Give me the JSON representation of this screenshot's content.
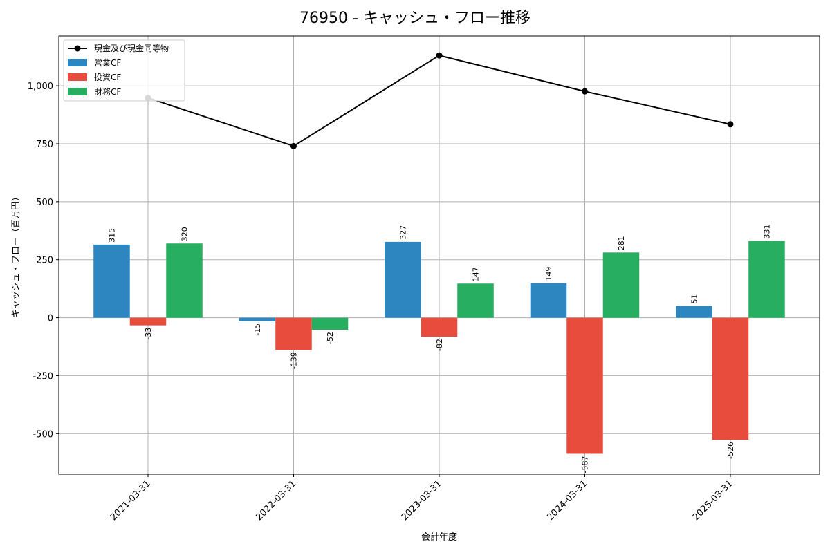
{
  "chart_data": {
    "type": "bar",
    "title": "76950 - キャッシュ・フロー推移",
    "xlabel": "会計年度",
    "ylabel": "キャッシュ・フロー（百万円）",
    "categories": [
      "2021-03-31",
      "2022-03-31",
      "2023-03-31",
      "2024-03-31",
      "2025-03-31"
    ],
    "ylim": [
      -675,
      1215
    ],
    "yticks": [
      -500,
      -250,
      0,
      250,
      500,
      750,
      1000
    ],
    "ytick_labels": [
      "-500",
      "-250",
      "0",
      "250",
      "500",
      "750",
      "1,000"
    ],
    "grid": true,
    "legend_position": "top-left",
    "series": [
      {
        "name": "営業CF",
        "kind": "bar",
        "color": "#2e86c1",
        "values": [
          315,
          -15,
          327,
          149,
          51
        ]
      },
      {
        "name": "投資CF",
        "kind": "bar",
        "color": "#e74c3c",
        "values": [
          -33,
          -139,
          -82,
          -587,
          -526
        ]
      },
      {
        "name": "財務CF",
        "kind": "bar",
        "color": "#27ae60",
        "values": [
          320,
          -52,
          147,
          281,
          331
        ]
      }
    ],
    "line_series": {
      "name": "現金及び現金同等物",
      "kind": "line",
      "color": "#000000",
      "values": [
        948,
        740,
        1131,
        976,
        834
      ]
    }
  }
}
